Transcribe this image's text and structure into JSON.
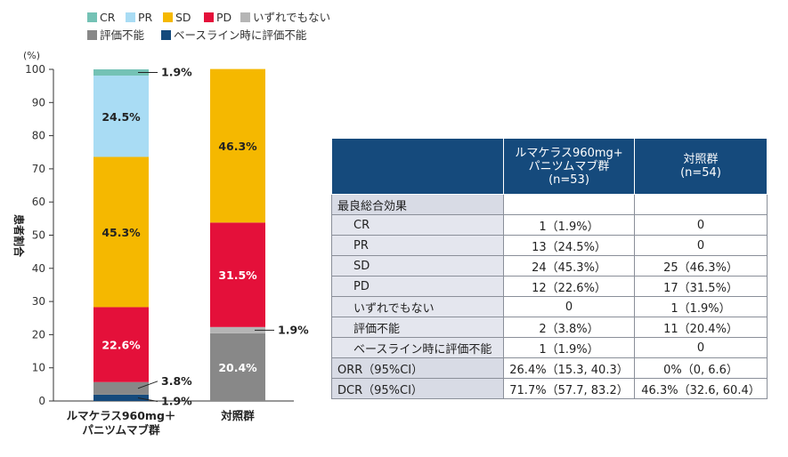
{
  "chart_data": {
    "type": "stacked-bar",
    "ylabel": "患者割合",
    "yunit": "(%)",
    "ylim": [
      0,
      100
    ],
    "yticks": [
      0,
      10,
      20,
      30,
      40,
      50,
      60,
      70,
      80,
      90,
      100
    ],
    "categories": [
      "ルマケラス960mg＋\nパニツムマブ群",
      "対照群"
    ],
    "category_lines": [
      [
        "ルマケラス960mg＋",
        "パニツムマブ群"
      ],
      [
        "対照群"
      ]
    ],
    "series": [
      {
        "name": "ベースライン時に評価不能",
        "color": "#154a7c",
        "values": [
          1.9,
          0
        ]
      },
      {
        "name": "評価不能",
        "color": "#888888",
        "values": [
          3.8,
          20.4
        ]
      },
      {
        "name": "いずれでもない",
        "color": "#b5b5b5",
        "values": [
          0,
          1.9
        ]
      },
      {
        "name": "PD",
        "color": "#e4103a",
        "values": [
          22.6,
          31.5
        ]
      },
      {
        "name": "SD",
        "color": "#f5b800",
        "values": [
          45.3,
          46.3
        ]
      },
      {
        "name": "PR",
        "color": "#a9dcf4",
        "values": [
          24.5,
          0
        ]
      },
      {
        "name": "CR",
        "color": "#74c2b5",
        "values": [
          1.9,
          0
        ]
      }
    ],
    "legend_order": [
      "CR",
      "PR",
      "SD",
      "PD",
      "いずれでもない",
      "評価不能",
      "ベースライン時に評価不能"
    ],
    "legend_placement": "top",
    "data_labels": [
      {
        "bar": 0,
        "series": "CR",
        "text": "1.9%",
        "outside": true
      },
      {
        "bar": 0,
        "series": "PR",
        "text": "24.5%"
      },
      {
        "bar": 0,
        "series": "SD",
        "text": "45.3%"
      },
      {
        "bar": 0,
        "series": "PD",
        "text": "22.6%"
      },
      {
        "bar": 0,
        "series": "評価不能",
        "text": "3.8%",
        "outside": true
      },
      {
        "bar": 0,
        "series": "ベースライン時に評価不能",
        "text": "1.9%",
        "outside": true
      },
      {
        "bar": 1,
        "series": "SD",
        "text": "46.3%"
      },
      {
        "bar": 1,
        "series": "PD",
        "text": "31.5%"
      },
      {
        "bar": 1,
        "series": "いずれでもない",
        "text": "1.9%",
        "outside": true
      },
      {
        "bar": 1,
        "series": "評価不能",
        "text": "20.4%"
      }
    ]
  },
  "table": {
    "headers": [
      "",
      "ルマケラス960mg+\nパニツムマブ群\n(n=53)",
      "対照群\n(n=54)"
    ],
    "header_lines": [
      [],
      [
        "ルマケラス960mg+",
        "パニツムマブ群",
        "(n=53)"
      ],
      [
        "対照群",
        "(n=54)"
      ]
    ],
    "rows": [
      {
        "label": "最良総合効果",
        "a": "",
        "b": "",
        "top": true
      },
      {
        "label": "CR",
        "a": "1（1.9%）",
        "b": "0"
      },
      {
        "label": "PR",
        "a": "13（24.5%）",
        "b": "0"
      },
      {
        "label": "SD",
        "a": "24（45.3%）",
        "b": "25（46.3%）"
      },
      {
        "label": "PD",
        "a": "12（22.6%）",
        "b": "17（31.5%）"
      },
      {
        "label": "いずれでもない",
        "a": "0",
        "b": "1（1.9%）"
      },
      {
        "label": "評価不能",
        "a": "2（3.8%）",
        "b": "11（20.4%）"
      },
      {
        "label": "ベースライン時に評価不能",
        "a": "1（1.9%）",
        "b": "0"
      },
      {
        "label": "ORR（95%CI）",
        "a": "26.4%（15.3, 40.3）",
        "b": "0%（0, 6.6）",
        "top": true
      },
      {
        "label": "DCR（95%CI）",
        "a": "71.7%（57.7, 83.2）",
        "b": "46.3%（32.6, 60.4）",
        "top": true
      }
    ]
  }
}
